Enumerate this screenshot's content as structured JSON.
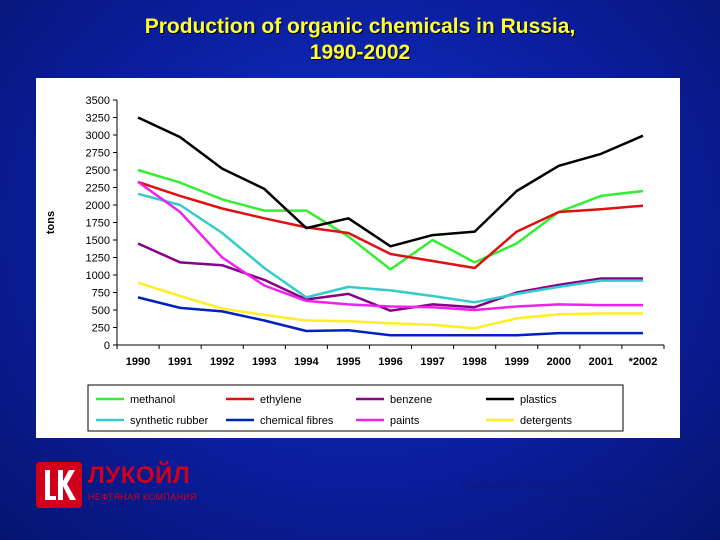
{
  "title": {
    "line1": "Production of organic chemicals in Russia,",
    "line2": "1990-2002"
  },
  "colors": {
    "title": "#ffff33",
    "background": "#0a1e9e",
    "logo": "#d0001a"
  },
  "logo": {
    "name": "ЛУКОЙЛ",
    "subtitle": "НЕФТЯНАЯ КОМПАНИЯ",
    "icon": "lukoil-emblem-icon"
  },
  "company": {
    "line1": "Закрытое акционерное общество",
    "line2": "\"ЛУКОЙЛ-Нефтехим\""
  },
  "chart_data": {
    "type": "line",
    "title": "",
    "xlabel": "",
    "ylabel": "tons",
    "categories": [
      "1990",
      "1991",
      "1992",
      "1993",
      "1994",
      "1995",
      "1996",
      "1997",
      "1998",
      "1999",
      "2000",
      "2001",
      "*2002"
    ],
    "ylim": [
      0,
      3500
    ],
    "yticks": [
      0,
      250,
      500,
      750,
      1000,
      1250,
      1500,
      1750,
      2000,
      2250,
      2500,
      2750,
      3000,
      3250,
      3500
    ],
    "grid": false,
    "legend_position": "bottom",
    "series": [
      {
        "name": "methanol",
        "color": "#33ee33",
        "values": [
          2500,
          2320,
          2080,
          1920,
          1920,
          1550,
          1080,
          1500,
          1180,
          1450,
          1900,
          2130,
          2200
        ]
      },
      {
        "name": "ethylene",
        "color": "#dd1111",
        "values": [
          2330,
          2130,
          1950,
          1810,
          1680,
          1600,
          1300,
          1200,
          1100,
          1620,
          1900,
          1940,
          1990
        ]
      },
      {
        "name": "benzene",
        "color": "#880088",
        "values": [
          1450,
          1180,
          1140,
          930,
          650,
          730,
          490,
          580,
          540,
          750,
          860,
          950,
          950
        ]
      },
      {
        "name": "plastics",
        "color": "#000000",
        "values": [
          3250,
          2970,
          2520,
          2230,
          1670,
          1810,
          1410,
          1570,
          1620,
          2200,
          2560,
          2730,
          2990
        ]
      },
      {
        "name": "synthetic rubber",
        "color": "#33cccc",
        "values": [
          2160,
          2000,
          1600,
          1100,
          680,
          830,
          780,
          700,
          610,
          730,
          830,
          920,
          920
        ]
      },
      {
        "name": "chemical fibres",
        "color": "#0022bb",
        "values": [
          680,
          530,
          480,
          350,
          200,
          210,
          140,
          140,
          140,
          140,
          170,
          170,
          170
        ]
      },
      {
        "name": "paints",
        "color": "#ee22ee",
        "values": [
          2330,
          1900,
          1250,
          850,
          630,
          580,
          550,
          540,
          500,
          550,
          580,
          570,
          570
        ]
      },
      {
        "name": "detergents",
        "color": "#ffee22",
        "values": [
          890,
          700,
          520,
          430,
          350,
          340,
          310,
          290,
          240,
          380,
          440,
          450,
          450
        ]
      }
    ]
  }
}
